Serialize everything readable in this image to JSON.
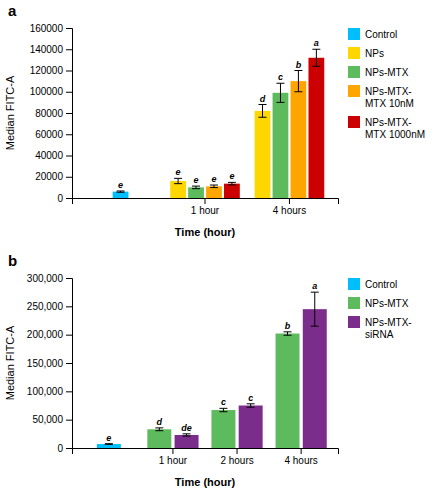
{
  "chart_data": [
    {
      "type": "bar",
      "title": "a",
      "xlabel": "Time (hour)",
      "ylabel": "Median FITC-A",
      "categories": [
        null,
        "1 hour",
        "4 hours"
      ],
      "series": [
        {
          "name": "Control",
          "color": "#00BFFF",
          "values": [
            6000,
            null,
            null
          ],
          "errors": [
            600,
            null,
            null
          ],
          "annotations": [
            "e",
            null,
            null
          ]
        },
        {
          "name": "NPs",
          "color": "#FFD700",
          "values": [
            null,
            16000,
            82000
          ],
          "errors": [
            null,
            2500,
            6000
          ],
          "annotations": [
            null,
            "e",
            "d"
          ]
        },
        {
          "name": "NPs-MTX",
          "color": "#5DBB5D",
          "values": [
            null,
            10000,
            99000
          ],
          "errors": [
            null,
            1200,
            9000
          ],
          "annotations": [
            null,
            "e",
            "c"
          ]
        },
        {
          "name": "NPs-MTX-\nMTX 10nM",
          "color": "#FFA500",
          "values": [
            null,
            11000,
            110000
          ],
          "errors": [
            null,
            1200,
            10000
          ],
          "annotations": [
            null,
            "e",
            "b"
          ]
        },
        {
          "name": "NPs-MTX-\nMTX 1000nM",
          "color": "#CC0000",
          "values": [
            null,
            13500,
            132000
          ],
          "errors": [
            null,
            1200,
            8000
          ],
          "annotations": [
            null,
            "e",
            "a"
          ]
        }
      ],
      "ylim": [
        0,
        160000
      ],
      "yticks": [
        0,
        20000,
        40000,
        60000,
        80000,
        100000,
        120000,
        140000,
        160000
      ],
      "grid": false,
      "legend": "right"
    },
    {
      "type": "bar",
      "title": "b",
      "xlabel": "Time (hour)",
      "ylabel": "Median FITC-A",
      "categories": [
        null,
        "1 hour",
        "2 hours",
        "4 hours"
      ],
      "series": [
        {
          "name": "Control",
          "color": "#00BFFF",
          "values": [
            7000,
            null,
            null,
            null
          ],
          "errors": [
            600,
            null,
            null,
            null
          ],
          "annotations": [
            "e",
            null,
            null,
            null
          ]
        },
        {
          "name": "NPs-MTX",
          "color": "#5DBB5D",
          "values": [
            null,
            33000,
            67000,
            202000
          ],
          "errors": [
            null,
            2500,
            3000,
            3000
          ],
          "annotations": [
            null,
            "d",
            "c",
            "b"
          ]
        },
        {
          "name": "NPs-MTX-\nsiRNA",
          "color": "#7B2D8B",
          "values": [
            null,
            23000,
            75000,
            245000
          ],
          "errors": [
            null,
            2000,
            3000,
            30000
          ],
          "annotations": [
            null,
            "de",
            "c",
            "a"
          ]
        }
      ],
      "ylim": [
        0,
        300000
      ],
      "yticks": [
        0,
        {
          "value": 50000,
          "label": "50,000"
        },
        {
          "value": 100000,
          "label": "100,000"
        },
        {
          "value": 150000,
          "label": "150,000"
        },
        {
          "value": 200000,
          "label": "200,000"
        },
        {
          "value": 250000,
          "label": "250,000"
        },
        {
          "value": 300000,
          "label": "300,000"
        }
      ],
      "grid": false,
      "legend": "right"
    }
  ]
}
